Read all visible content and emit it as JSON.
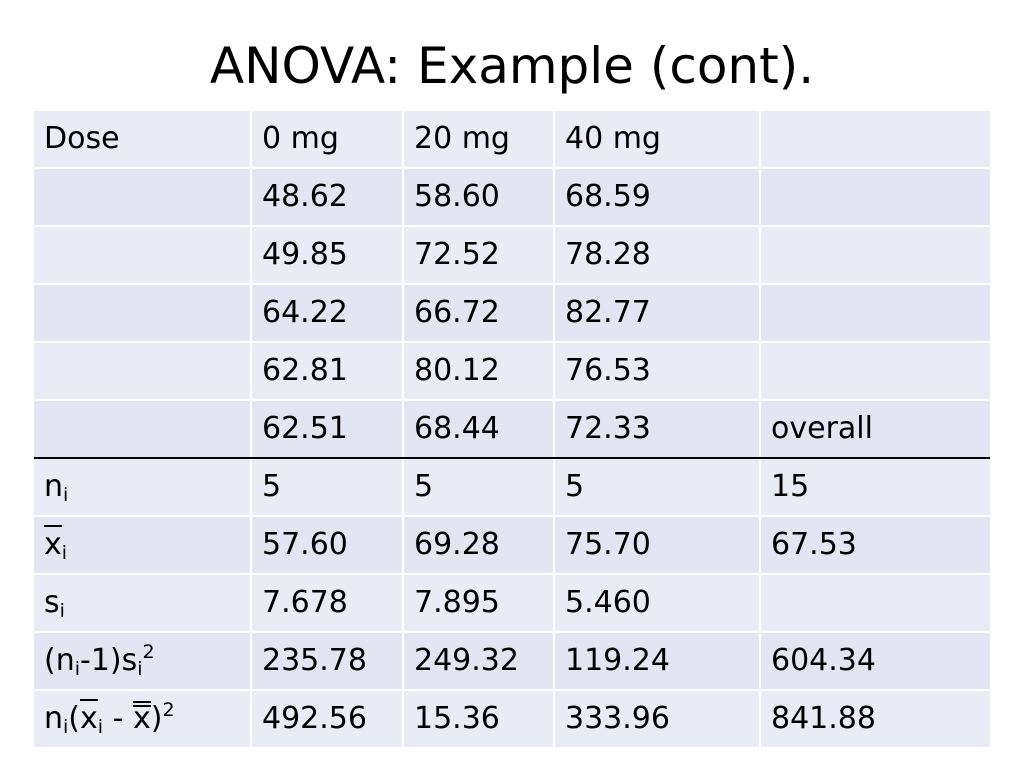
{
  "title": "ANOVA: Example (cont).",
  "table": {
    "header": {
      "label": "Dose",
      "cols": [
        "0 mg",
        "20 mg",
        "40 mg",
        ""
      ]
    },
    "raw_rows": [
      [
        "48.62",
        "58.60",
        "68.59",
        ""
      ],
      [
        "49.85",
        "72.52",
        "78.28",
        ""
      ],
      [
        "64.22",
        "66.72",
        "82.77",
        ""
      ],
      [
        "62.81",
        "80.12",
        "76.53",
        ""
      ],
      [
        "62.51",
        "68.44",
        "72.33",
        "overall"
      ]
    ],
    "stats_rows": {
      "n": {
        "label_base": "n",
        "label_sub": "i",
        "values": [
          "5",
          "5",
          "5",
          "15"
        ]
      },
      "mean": {
        "label_base": "x",
        "label_sub": "i",
        "values": [
          "57.60",
          "69.28",
          "75.70",
          "67.53"
        ]
      },
      "sd": {
        "label_base": "s",
        "label_sub": "i",
        "values": [
          "7.678",
          "7.895",
          "5.460",
          ""
        ]
      },
      "ss_within": {
        "label_parts": [
          "(n",
          "i",
          "-1)s",
          "i",
          "2"
        ],
        "values": [
          "235.78",
          "249.32",
          "119.24",
          "604.34"
        ]
      },
      "ss_between": {
        "label_parts": [
          "n",
          "i",
          "(",
          "x",
          "i",
          " - ",
          "x",
          ")",
          "2"
        ],
        "values": [
          "492.56",
          "15.36",
          "333.96",
          "841.88"
        ]
      }
    }
  }
}
